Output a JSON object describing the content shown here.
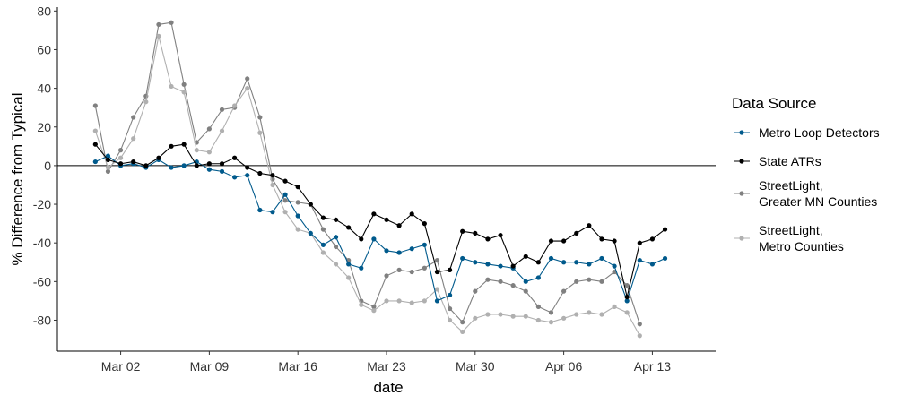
{
  "chart_data": {
    "type": "line",
    "title": "",
    "xlabel": "date",
    "ylabel": "% Difference from Typical",
    "xlim": [
      "2020-02-26",
      "2020-04-18"
    ],
    "ylim": [
      -96,
      82
    ],
    "x_ticks": [
      {
        "date": "2020-03-02",
        "label": "Mar 02"
      },
      {
        "date": "2020-03-09",
        "label": "Mar 09"
      },
      {
        "date": "2020-03-16",
        "label": "Mar 16"
      },
      {
        "date": "2020-03-23",
        "label": "Mar 23"
      },
      {
        "date": "2020-03-30",
        "label": "Mar 30"
      },
      {
        "date": "2020-04-06",
        "label": "Apr 06"
      },
      {
        "date": "2020-04-13",
        "label": "Apr 13"
      }
    ],
    "y_ticks": [
      80,
      60,
      40,
      20,
      0,
      -20,
      -40,
      -60,
      -80
    ],
    "reference_line": 0,
    "grid": false,
    "legend": {
      "title": "Data Source",
      "position": "right"
    },
    "series": [
      {
        "name": "StreetLight, Greater MN Counties",
        "legend_lines": [
          "StreetLight,",
          "Greater MN Counties"
        ],
        "color": "#808080",
        "points": [
          [
            "2020-02-29",
            31
          ],
          [
            "2020-03-01",
            -3
          ],
          [
            "2020-03-02",
            8
          ],
          [
            "2020-03-03",
            25
          ],
          [
            "2020-03-04",
            36
          ],
          [
            "2020-03-05",
            73
          ],
          [
            "2020-03-06",
            74
          ],
          [
            "2020-03-07",
            42
          ],
          [
            "2020-03-08",
            12
          ],
          [
            "2020-03-09",
            19
          ],
          [
            "2020-03-10",
            29
          ],
          [
            "2020-03-11",
            30
          ],
          [
            "2020-03-12",
            45
          ],
          [
            "2020-03-13",
            25
          ],
          [
            "2020-03-14",
            -7
          ],
          [
            "2020-03-15",
            -18
          ],
          [
            "2020-03-16",
            -19
          ],
          [
            "2020-03-17",
            -20
          ],
          [
            "2020-03-18",
            -33
          ],
          [
            "2020-03-19",
            -42
          ],
          [
            "2020-03-20",
            -49
          ],
          [
            "2020-03-21",
            -70
          ],
          [
            "2020-03-22",
            -73
          ],
          [
            "2020-03-23",
            -57
          ],
          [
            "2020-03-24",
            -54
          ],
          [
            "2020-03-25",
            -55
          ],
          [
            "2020-03-26",
            -53
          ],
          [
            "2020-03-27",
            -49
          ],
          [
            "2020-03-28",
            -74
          ],
          [
            "2020-03-29",
            -81
          ],
          [
            "2020-03-30",
            -65
          ],
          [
            "2020-03-31",
            -59
          ],
          [
            "2020-04-01",
            -60
          ],
          [
            "2020-04-02",
            -62
          ],
          [
            "2020-04-03",
            -65
          ],
          [
            "2020-04-04",
            -73
          ],
          [
            "2020-04-05",
            -76
          ],
          [
            "2020-04-06",
            -65
          ],
          [
            "2020-04-07",
            -60
          ],
          [
            "2020-04-08",
            -59
          ],
          [
            "2020-04-09",
            -60
          ],
          [
            "2020-04-10",
            -55
          ],
          [
            "2020-04-11",
            -62
          ],
          [
            "2020-04-12",
            -82
          ]
        ]
      },
      {
        "name": "StreetLight, Metro Counties",
        "legend_lines": [
          "StreetLight,",
          "Metro Counties"
        ],
        "color": "#b0b0b0",
        "points": [
          [
            "2020-02-29",
            18
          ],
          [
            "2020-03-01",
            -1
          ],
          [
            "2020-03-02",
            4
          ],
          [
            "2020-03-03",
            14
          ],
          [
            "2020-03-04",
            33
          ],
          [
            "2020-03-05",
            67
          ],
          [
            "2020-03-06",
            41
          ],
          [
            "2020-03-07",
            38
          ],
          [
            "2020-03-08",
            8
          ],
          [
            "2020-03-09",
            7
          ],
          [
            "2020-03-10",
            18
          ],
          [
            "2020-03-11",
            31
          ],
          [
            "2020-03-12",
            40
          ],
          [
            "2020-03-13",
            17
          ],
          [
            "2020-03-14",
            -10
          ],
          [
            "2020-03-15",
            -24
          ],
          [
            "2020-03-16",
            -33
          ],
          [
            "2020-03-17",
            -35
          ],
          [
            "2020-03-18",
            -45
          ],
          [
            "2020-03-19",
            -51
          ],
          [
            "2020-03-20",
            -58
          ],
          [
            "2020-03-21",
            -72
          ],
          [
            "2020-03-22",
            -75
          ],
          [
            "2020-03-23",
            -70
          ],
          [
            "2020-03-24",
            -70
          ],
          [
            "2020-03-25",
            -71
          ],
          [
            "2020-03-26",
            -70
          ],
          [
            "2020-03-27",
            -64
          ],
          [
            "2020-03-28",
            -80
          ],
          [
            "2020-03-29",
            -86
          ],
          [
            "2020-03-30",
            -79
          ],
          [
            "2020-03-31",
            -77
          ],
          [
            "2020-04-01",
            -77
          ],
          [
            "2020-04-02",
            -78
          ],
          [
            "2020-04-03",
            -78
          ],
          [
            "2020-04-04",
            -80
          ],
          [
            "2020-04-05",
            -81
          ],
          [
            "2020-04-06",
            -79
          ],
          [
            "2020-04-07",
            -77
          ],
          [
            "2020-04-08",
            -76
          ],
          [
            "2020-04-09",
            -77
          ],
          [
            "2020-04-10",
            -73
          ],
          [
            "2020-04-11",
            -76
          ],
          [
            "2020-04-12",
            -88
          ]
        ]
      },
      {
        "name": "Metro Loop Detectors",
        "legend_lines": [
          "Metro Loop Detectors"
        ],
        "color": "#005a8c",
        "points": [
          [
            "2020-02-29",
            2
          ],
          [
            "2020-03-01",
            5
          ],
          [
            "2020-03-02",
            0
          ],
          [
            "2020-03-03",
            1
          ],
          [
            "2020-03-04",
            -1
          ],
          [
            "2020-03-05",
            3
          ],
          [
            "2020-03-06",
            -1
          ],
          [
            "2020-03-07",
            0
          ],
          [
            "2020-03-08",
            2
          ],
          [
            "2020-03-09",
            -2
          ],
          [
            "2020-03-10",
            -3
          ],
          [
            "2020-03-11",
            -6
          ],
          [
            "2020-03-12",
            -5
          ],
          [
            "2020-03-13",
            -23
          ],
          [
            "2020-03-14",
            -24
          ],
          [
            "2020-03-15",
            -15
          ],
          [
            "2020-03-16",
            -26
          ],
          [
            "2020-03-17",
            -35
          ],
          [
            "2020-03-18",
            -41
          ],
          [
            "2020-03-19",
            -37
          ],
          [
            "2020-03-20",
            -51
          ],
          [
            "2020-03-21",
            -53
          ],
          [
            "2020-03-22",
            -38
          ],
          [
            "2020-03-23",
            -44
          ],
          [
            "2020-03-24",
            -45
          ],
          [
            "2020-03-25",
            -43
          ],
          [
            "2020-03-26",
            -41
          ],
          [
            "2020-03-27",
            -70
          ],
          [
            "2020-03-28",
            -67
          ],
          [
            "2020-03-29",
            -48
          ],
          [
            "2020-03-30",
            -50
          ],
          [
            "2020-03-31",
            -51
          ],
          [
            "2020-04-01",
            -52
          ],
          [
            "2020-04-02",
            -53
          ],
          [
            "2020-04-03",
            -60
          ],
          [
            "2020-04-04",
            -58
          ],
          [
            "2020-04-05",
            -48
          ],
          [
            "2020-04-06",
            -50
          ],
          [
            "2020-04-07",
            -50
          ],
          [
            "2020-04-08",
            -51
          ],
          [
            "2020-04-09",
            -48
          ],
          [
            "2020-04-10",
            -52
          ],
          [
            "2020-04-11",
            -70
          ],
          [
            "2020-04-12",
            -49
          ],
          [
            "2020-04-13",
            -51
          ],
          [
            "2020-04-14",
            -48
          ]
        ]
      },
      {
        "name": "State ATRs",
        "legend_lines": [
          "State ATRs"
        ],
        "color": "#000000",
        "points": [
          [
            "2020-02-29",
            11
          ],
          [
            "2020-03-01",
            3
          ],
          [
            "2020-03-02",
            1
          ],
          [
            "2020-03-03",
            2
          ],
          [
            "2020-03-04",
            0
          ],
          [
            "2020-03-05",
            4
          ],
          [
            "2020-03-06",
            10
          ],
          [
            "2020-03-07",
            11
          ],
          [
            "2020-03-08",
            0
          ],
          [
            "2020-03-09",
            1
          ],
          [
            "2020-03-10",
            1
          ],
          [
            "2020-03-11",
            4
          ],
          [
            "2020-03-12",
            -1
          ],
          [
            "2020-03-13",
            -4
          ],
          [
            "2020-03-14",
            -5
          ],
          [
            "2020-03-15",
            -8
          ],
          [
            "2020-03-16",
            -11
          ],
          [
            "2020-03-17",
            -20
          ],
          [
            "2020-03-18",
            -27
          ],
          [
            "2020-03-19",
            -28
          ],
          [
            "2020-03-20",
            -32
          ],
          [
            "2020-03-21",
            -38
          ],
          [
            "2020-03-22",
            -25
          ],
          [
            "2020-03-23",
            -28
          ],
          [
            "2020-03-24",
            -31
          ],
          [
            "2020-03-25",
            -25
          ],
          [
            "2020-03-26",
            -30
          ],
          [
            "2020-03-27",
            -55
          ],
          [
            "2020-03-28",
            -54
          ],
          [
            "2020-03-29",
            -34
          ],
          [
            "2020-03-30",
            -35
          ],
          [
            "2020-03-31",
            -38
          ],
          [
            "2020-04-01",
            -36
          ],
          [
            "2020-04-02",
            -52
          ],
          [
            "2020-04-03",
            -47
          ],
          [
            "2020-04-04",
            -50
          ],
          [
            "2020-04-05",
            -39
          ],
          [
            "2020-04-06",
            -39
          ],
          [
            "2020-04-07",
            -35
          ],
          [
            "2020-04-08",
            -31
          ],
          [
            "2020-04-09",
            -38
          ],
          [
            "2020-04-10",
            -39
          ],
          [
            "2020-04-11",
            -68
          ],
          [
            "2020-04-12",
            -40
          ],
          [
            "2020-04-13",
            -38
          ],
          [
            "2020-04-14",
            -33
          ]
        ]
      }
    ],
    "legend_order": [
      "Metro Loop Detectors",
      "State ATRs",
      "StreetLight, Greater MN Counties",
      "StreetLight, Metro Counties"
    ]
  }
}
